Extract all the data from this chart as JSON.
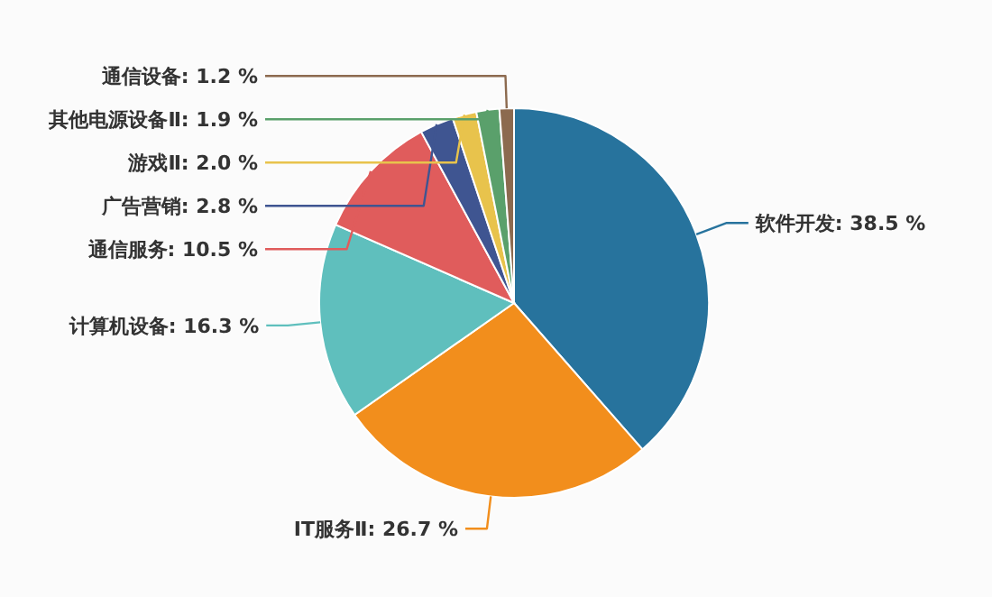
{
  "chart_data": {
    "type": "pie",
    "categories": [
      "软件开发",
      "IT服务Ⅱ",
      "计算机设备",
      "通信服务",
      "广告营销",
      "游戏Ⅱ",
      "其他电源设备Ⅱ",
      "通信设备"
    ],
    "values": [
      38.5,
      26.7,
      16.3,
      10.5,
      2.8,
      2.0,
      1.9,
      1.2
    ],
    "value_labels": [
      "38.5 %",
      "26.7 %",
      "16.3 %",
      "10.5 %",
      "2.8 %",
      "2.0 %",
      "1.9 %",
      "1.2 %"
    ],
    "colors": [
      "#27739d",
      "#f28e1c",
      "#5fbfbd",
      "#e05c5c",
      "#3f5591",
      "#e8c34c",
      "#5aa06b",
      "#8c6a4f"
    ]
  }
}
